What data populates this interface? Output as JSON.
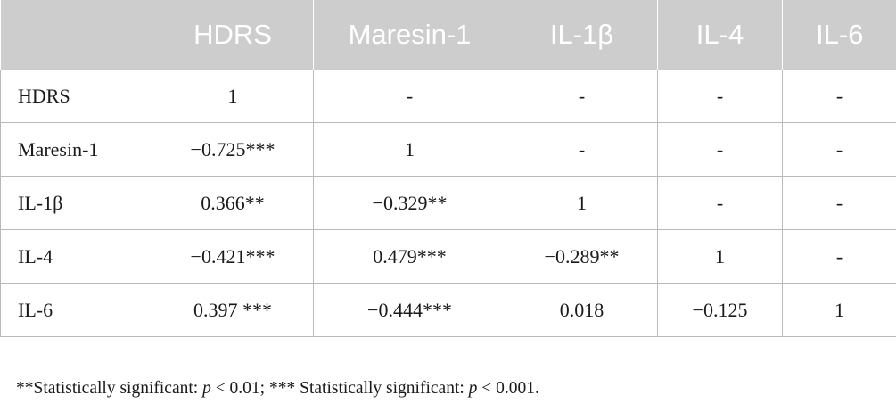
{
  "table": {
    "columns": [
      "",
      "HDRS",
      "Maresin-1",
      "IL-1β",
      "IL-4",
      "IL-6"
    ],
    "rows": [
      {
        "label": "HDRS",
        "cells": [
          "1",
          "-",
          "-",
          "-",
          "-"
        ]
      },
      {
        "label": "Maresin-1",
        "cells": [
          "−0.725***",
          "1",
          "-",
          "-",
          "-"
        ]
      },
      {
        "label": "IL-1β",
        "cells": [
          "0.366**",
          "−0.329**",
          "1",
          "-",
          "-"
        ]
      },
      {
        "label": "IL-4",
        "cells": [
          "−0.421***",
          "0.479***",
          "−0.289**",
          "1",
          "-"
        ]
      },
      {
        "label": "IL-6",
        "cells": [
          "0.397 ***",
          "−0.444***",
          "0.018",
          "−0.125",
          "1"
        ]
      }
    ]
  },
  "footnote": {
    "part1": "**Statistically significant: ",
    "p1": "p",
    "part2": " < 0.01; *** Statistically significant: ",
    "p2": "p",
    "part3": " < 0.001."
  }
}
